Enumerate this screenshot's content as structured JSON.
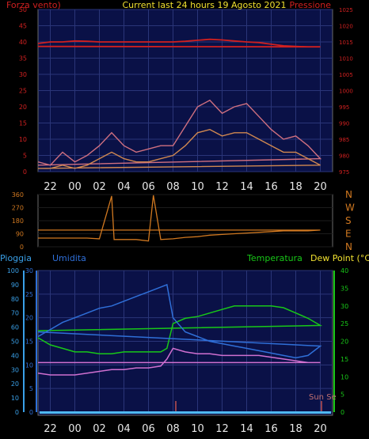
{
  "header": {
    "left_label": "Forza vento)",
    "title": "Current last 24 hours 19 Agosto 2021",
    "right_label": "Pressione"
  },
  "bottom_header": {
    "rain_label": "Pioggia",
    "humidity_label": "Umidita",
    "temp_label": "Temperatura",
    "dew_label": "Dew Point (°C)"
  },
  "sun_label": "Sun Se",
  "compass": [
    "N",
    "W",
    "S",
    "E",
    "N"
  ],
  "colors": {
    "pressure": "#d02020",
    "gust": "#d07080",
    "wind": "#d08850",
    "wind_light": "#c8c8c8",
    "direction": "#d07820",
    "temperature": "#18c818",
    "humidity": "#2f6fd8",
    "dew_point": "#d070d0",
    "rain_axis": "#3aa0e8"
  },
  "x_ticks": [
    "22",
    "00",
    "02",
    "04",
    "06",
    "08",
    "10",
    "12",
    "14",
    "16",
    "18",
    "20"
  ],
  "x_ticks_bottom": [
    "22",
    "00",
    "02",
    "04",
    "06",
    "08",
    "10",
    "12",
    "14",
    "16",
    "18",
    "20"
  ],
  "chart_data": [
    {
      "type": "line",
      "title": "Current last 24 hours 19 Agosto 2021",
      "left_axis": {
        "label": "Forza vento)",
        "ticks": [
          "0",
          "5",
          "10",
          "15",
          "20",
          "25",
          "30",
          "35",
          "40",
          "45",
          "50"
        ],
        "ylim": [
          0,
          50
        ]
      },
      "right_axis": {
        "label": "Pressione",
        "ticks": [
          "975",
          "980",
          "985",
          "990",
          "995",
          "1000",
          "1005",
          "1010",
          "1015",
          "1020",
          "1025"
        ],
        "ylim": [
          975,
          1025
        ]
      },
      "x_hours": [
        21,
        22,
        23,
        0,
        1,
        2,
        3,
        4,
        5,
        6,
        7,
        8,
        9,
        10,
        11,
        12,
        13,
        14,
        15,
        16,
        17,
        18,
        19,
        20,
        21
      ],
      "series": [
        {
          "name": "Pressione",
          "values": [
            1014.5,
            1015,
            1015,
            1015.3,
            1015.2,
            1015,
            1015,
            1015,
            1015,
            1015,
            1015,
            1015,
            1015.2,
            1015.5,
            1015.8,
            1015.6,
            1015.3,
            1015,
            1014.8,
            1014.3,
            1013.8,
            1013.6,
            1013.5,
            1013.5,
            1013.6
          ]
        },
        {
          "values": [
            3,
            2,
            6,
            3,
            5,
            8,
            12,
            8,
            6,
            7,
            8,
            8,
            14,
            20,
            22,
            18,
            20,
            21,
            17,
            13,
            10,
            11,
            8,
            4,
            2
          ]
        },
        {
          "values": [
            1,
            1,
            2,
            1,
            2,
            4,
            6,
            4,
            3,
            3,
            4,
            5,
            8,
            12,
            13,
            11,
            12,
            12,
            10,
            8,
            6,
            6,
            4,
            2,
            1
          ]
        }
      ]
    },
    {
      "type": "line",
      "left_axis": {
        "ticks": [
          "0",
          "90",
          "180",
          "270",
          "360"
        ],
        "ylim": [
          0,
          360
        ]
      },
      "right_axis": {
        "ticks": [
          "N",
          "W",
          "S",
          "E",
          "N"
        ]
      },
      "x_hours": [
        21,
        22,
        23,
        0,
        1,
        2,
        3,
        3.2,
        4,
        5,
        6,
        6.4,
        7,
        8,
        9,
        10,
        11,
        12,
        13,
        14,
        15,
        16,
        17,
        18,
        19,
        20,
        21
      ],
      "series": [
        {
          "values": [
            60,
            60,
            60,
            60,
            60,
            55,
            350,
            50,
            50,
            50,
            40,
            355,
            50,
            55,
            65,
            70,
            80,
            85,
            90,
            95,
            100,
            105,
            110,
            110,
            110,
            115,
            115
          ]
        }
      ]
    },
    {
      "type": "line",
      "humidity_axis": {
        "label": "Umidita",
        "ticks": [
          "0",
          "5",
          "10",
          "15",
          "20",
          "25",
          "30"
        ],
        "ylim": [
          0,
          30
        ]
      },
      "rain_axis": {
        "label": "Pioggia",
        "ticks": [
          "0",
          "10",
          "20",
          "30",
          "40",
          "50",
          "60",
          "70",
          "80",
          "90",
          "100"
        ],
        "ylim": [
          0,
          100
        ]
      },
      "temp_axis": {
        "label": "Dew Point (°C)",
        "ticks": [
          "0",
          "5",
          "10",
          "15",
          "20",
          "25",
          "30",
          "35",
          "40"
        ],
        "ylim": [
          0,
          40
        ]
      },
      "x_hours": [
        21,
        22,
        23,
        0,
        1,
        2,
        3,
        4,
        5,
        6,
        7,
        7.5,
        8,
        9,
        10,
        11,
        12,
        13,
        14,
        15,
        16,
        17,
        18,
        19,
        20,
        21
      ],
      "series": [
        {
          "name": "Umidita",
          "values": [
            16,
            17.5,
            19,
            20,
            21,
            22,
            22.5,
            23.5,
            24.5,
            25.5,
            26.5,
            27,
            20,
            17,
            16,
            15,
            14.5,
            14,
            13.5,
            13,
            12.5,
            12,
            11.5,
            12,
            14,
            17
          ]
        },
        {
          "name": "Temperatura",
          "values": [
            21,
            19,
            18,
            17,
            17,
            16.5,
            16.5,
            17,
            17,
            17,
            17,
            18,
            25,
            26.5,
            27,
            28,
            29,
            30,
            30,
            30,
            30,
            29.5,
            28,
            26.5,
            24.5,
            23
          ]
        },
        {
          "name": "Dew Point (°C)",
          "values": [
            11,
            10.5,
            10.5,
            10.5,
            11,
            11.5,
            12,
            12,
            12.5,
            12.5,
            13,
            15,
            18,
            17,
            16.5,
            16.5,
            16,
            16,
            16,
            16,
            15.5,
            15,
            14.5,
            14,
            14,
            14
          ]
        }
      ]
    }
  ]
}
